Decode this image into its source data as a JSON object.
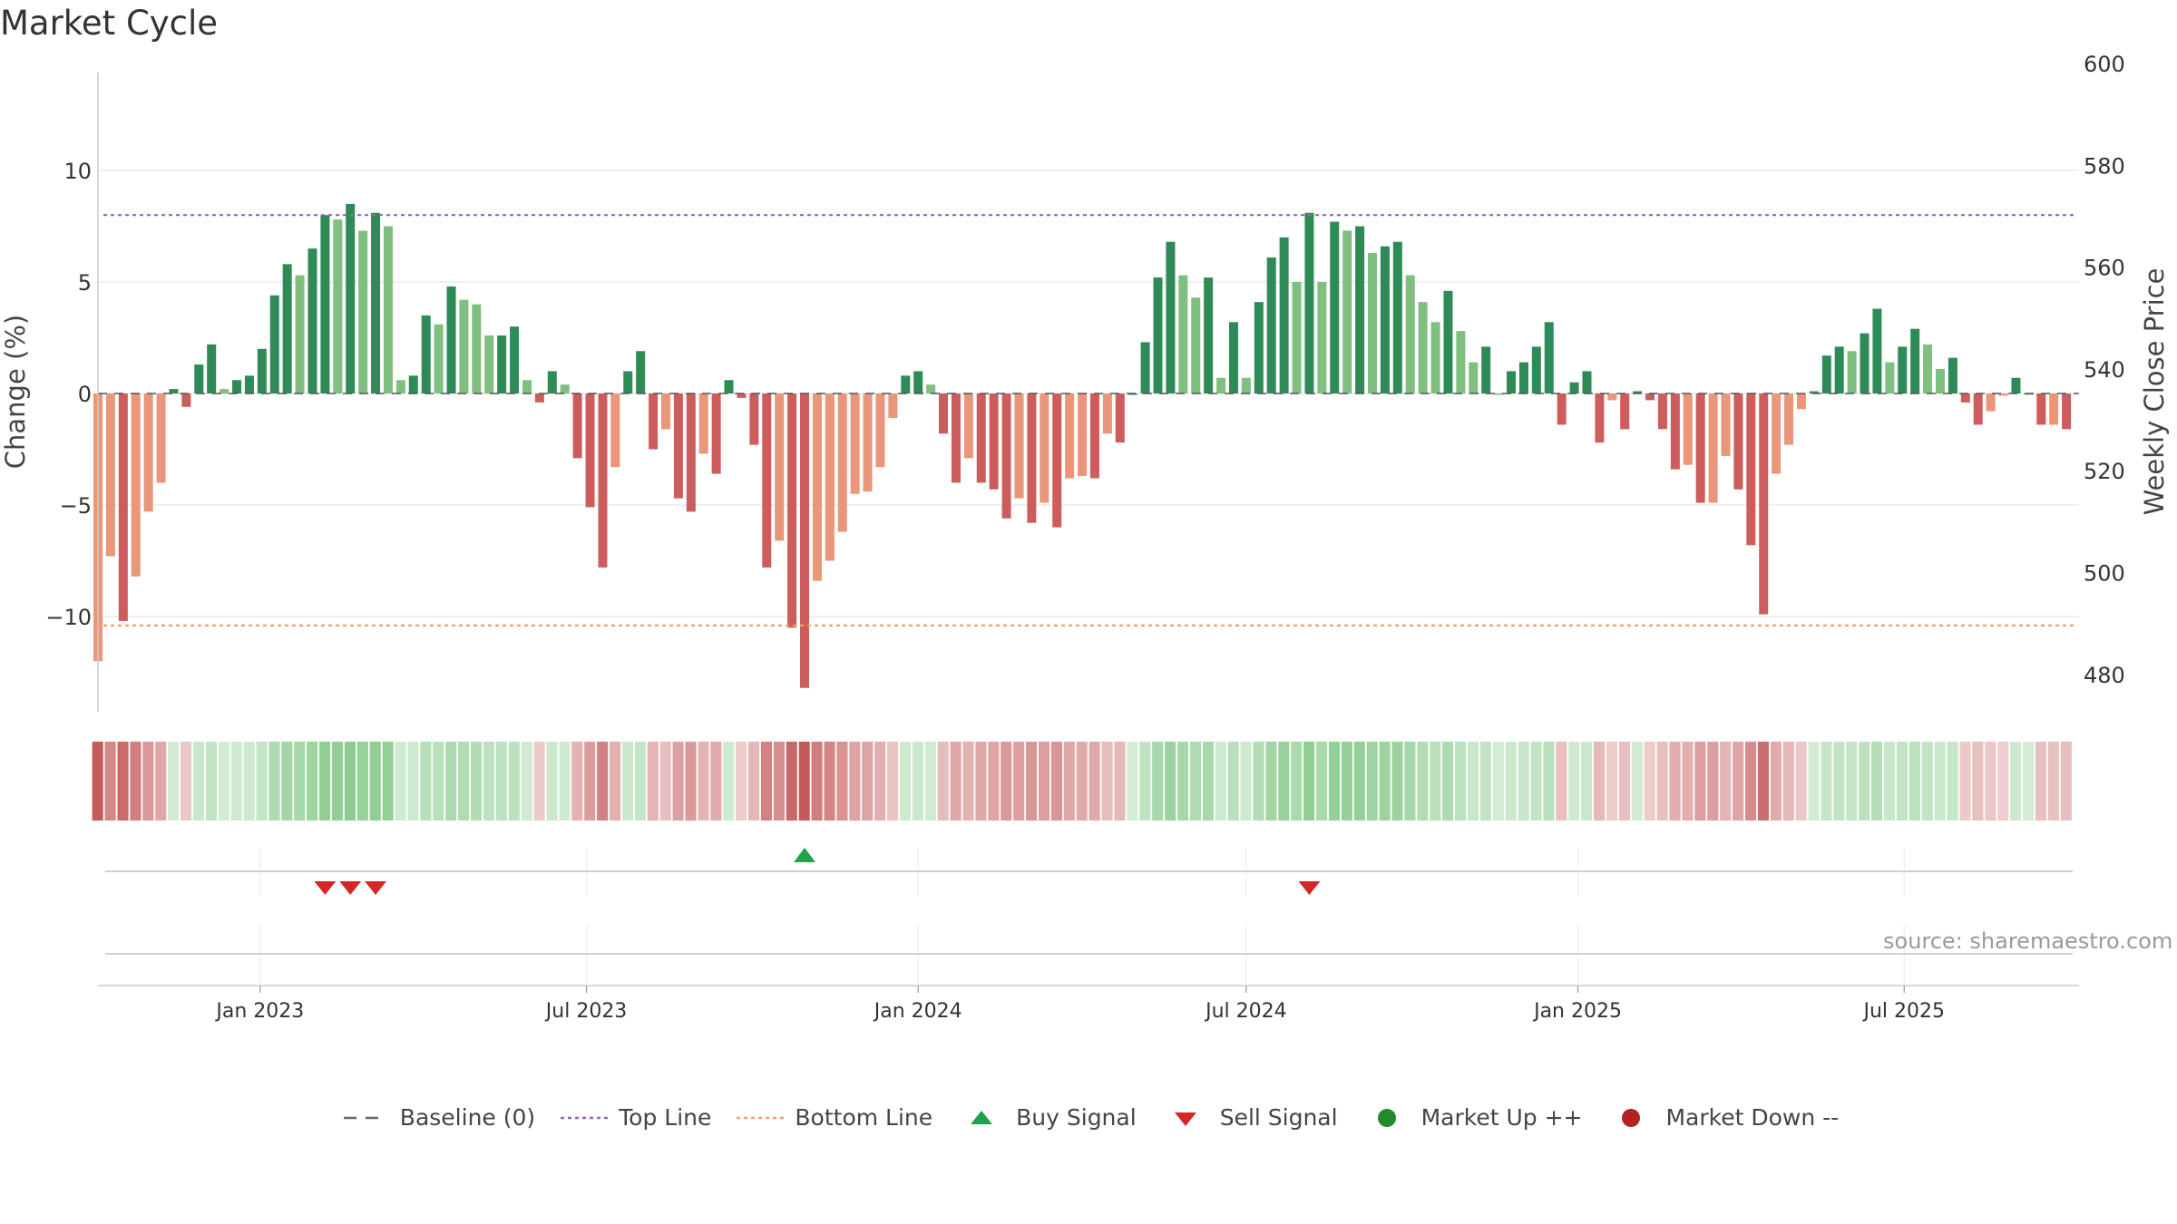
{
  "chart_data": {
    "type": "bar",
    "title": "Market Cycle",
    "ylabel": "Change (%)",
    "y2label": "Weekly Close Price",
    "ylim": [
      -14.2,
      14.5
    ],
    "y2lim": [
      470,
      600
    ],
    "yticks": [
      10,
      5,
      0,
      -5,
      -10
    ],
    "ytick_labels": [
      "10",
      "5",
      "0",
      "−5",
      "−10"
    ],
    "y2ticks": [
      600,
      580,
      560,
      540,
      520,
      500,
      480
    ],
    "x_start": "2022-10-03",
    "x_end": "2025-10-06",
    "xtick_dates": [
      "2023-01-01",
      "2023-07-01",
      "2024-01-01",
      "2024-07-01",
      "2025-01-01",
      "2025-07-01"
    ],
    "xtick_labels": [
      "Jan 2023",
      "Jul 2023",
      "Jan 2024",
      "Jul 2024",
      "Jan 2025",
      "Jul 2025"
    ],
    "top_line": 8.0,
    "bottom_line": -10.4,
    "baseline": 0,
    "weeks": [
      {
        "date": "2022-10-03",
        "value": -12.0
      },
      {
        "date": "2022-10-10",
        "value": -7.3
      },
      {
        "date": "2022-10-17",
        "value": -10.2
      },
      {
        "date": "2022-10-24",
        "value": -8.2
      },
      {
        "date": "2022-10-31",
        "value": -5.3
      },
      {
        "date": "2022-11-07",
        "value": -4.0
      },
      {
        "date": "2022-11-14",
        "value": 0.2
      },
      {
        "date": "2022-11-21",
        "value": -0.6
      },
      {
        "date": "2022-11-28",
        "value": 1.3
      },
      {
        "date": "2022-12-05",
        "value": 2.2
      },
      {
        "date": "2022-12-12",
        "value": 0.2
      },
      {
        "date": "2022-12-19",
        "value": 0.6
      },
      {
        "date": "2022-12-26",
        "value": 0.8
      },
      {
        "date": "2023-01-02",
        "value": 2.0
      },
      {
        "date": "2023-01-09",
        "value": 4.4
      },
      {
        "date": "2023-01-16",
        "value": 5.8
      },
      {
        "date": "2023-01-23",
        "value": 5.3
      },
      {
        "date": "2023-01-30",
        "value": 6.5
      },
      {
        "date": "2023-02-06",
        "value": 8.0
      },
      {
        "date": "2023-02-13",
        "value": 7.8
      },
      {
        "date": "2023-02-20",
        "value": 8.5
      },
      {
        "date": "2023-02-27",
        "value": 7.3
      },
      {
        "date": "2023-03-06",
        "value": 8.1
      },
      {
        "date": "2023-03-13",
        "value": 7.5
      },
      {
        "date": "2023-03-20",
        "value": 0.6
      },
      {
        "date": "2023-03-27",
        "value": 0.8
      },
      {
        "date": "2023-04-03",
        "value": 3.5
      },
      {
        "date": "2023-04-10",
        "value": 3.1
      },
      {
        "date": "2023-04-17",
        "value": 4.8
      },
      {
        "date": "2023-04-24",
        "value": 4.2
      },
      {
        "date": "2023-05-01",
        "value": 4.0
      },
      {
        "date": "2023-05-08",
        "value": 2.6
      },
      {
        "date": "2023-05-15",
        "value": 2.6
      },
      {
        "date": "2023-05-22",
        "value": 3.0
      },
      {
        "date": "2023-05-29",
        "value": 0.6
      },
      {
        "date": "2023-06-05",
        "value": -0.4
      },
      {
        "date": "2023-06-12",
        "value": 1.0
      },
      {
        "date": "2023-06-19",
        "value": 0.4
      },
      {
        "date": "2023-06-26",
        "value": -2.9
      },
      {
        "date": "2023-07-03",
        "value": -5.1
      },
      {
        "date": "2023-07-10",
        "value": -7.8
      },
      {
        "date": "2023-07-17",
        "value": -3.3
      },
      {
        "date": "2023-07-24",
        "value": 1.0
      },
      {
        "date": "2023-07-31",
        "value": 1.9
      },
      {
        "date": "2023-08-07",
        "value": -2.5
      },
      {
        "date": "2023-08-14",
        "value": -1.6
      },
      {
        "date": "2023-08-21",
        "value": -4.7
      },
      {
        "date": "2023-08-28",
        "value": -5.3
      },
      {
        "date": "2023-09-04",
        "value": -2.7
      },
      {
        "date": "2023-09-11",
        "value": -3.6
      },
      {
        "date": "2023-09-18",
        "value": 0.6
      },
      {
        "date": "2023-09-25",
        "value": -0.2
      },
      {
        "date": "2023-10-02",
        "value": -2.3
      },
      {
        "date": "2023-10-09",
        "value": -7.8
      },
      {
        "date": "2023-10-16",
        "value": -6.6
      },
      {
        "date": "2023-10-23",
        "value": -10.5
      },
      {
        "date": "2023-10-30",
        "value": -13.2
      },
      {
        "date": "2023-11-06",
        "value": -8.4
      },
      {
        "date": "2023-11-13",
        "value": -7.5
      },
      {
        "date": "2023-11-20",
        "value": -6.2
      },
      {
        "date": "2023-11-27",
        "value": -4.5
      },
      {
        "date": "2023-12-04",
        "value": -4.4
      },
      {
        "date": "2023-12-11",
        "value": -3.3
      },
      {
        "date": "2023-12-18",
        "value": -1.1
      },
      {
        "date": "2023-12-25",
        "value": 0.8
      },
      {
        "date": "2024-01-01",
        "value": 1.0
      },
      {
        "date": "2024-01-08",
        "value": 0.4
      },
      {
        "date": "2024-01-15",
        "value": -1.8
      },
      {
        "date": "2024-01-22",
        "value": -4.0
      },
      {
        "date": "2024-01-29",
        "value": -2.9
      },
      {
        "date": "2024-02-05",
        "value": -4.0
      },
      {
        "date": "2024-02-12",
        "value": -4.3
      },
      {
        "date": "2024-02-19",
        "value": -5.6
      },
      {
        "date": "2024-02-26",
        "value": -4.7
      },
      {
        "date": "2024-03-04",
        "value": -5.8
      },
      {
        "date": "2024-03-11",
        "value": -4.9
      },
      {
        "date": "2024-03-18",
        "value": -6.0
      },
      {
        "date": "2024-03-25",
        "value": -3.8
      },
      {
        "date": "2024-04-01",
        "value": -3.7
      },
      {
        "date": "2024-04-08",
        "value": -3.8
      },
      {
        "date": "2024-04-15",
        "value": -1.8
      },
      {
        "date": "2024-04-22",
        "value": -2.2
      },
      {
        "date": "2024-04-29",
        "value": 0.0
      },
      {
        "date": "2024-05-06",
        "value": 2.3
      },
      {
        "date": "2024-05-13",
        "value": 5.2
      },
      {
        "date": "2024-05-20",
        "value": 6.8
      },
      {
        "date": "2024-05-27",
        "value": 5.3
      },
      {
        "date": "2024-06-03",
        "value": 4.3
      },
      {
        "date": "2024-06-10",
        "value": 5.2
      },
      {
        "date": "2024-06-17",
        "value": 0.7
      },
      {
        "date": "2024-06-24",
        "value": 3.2
      },
      {
        "date": "2024-07-01",
        "value": 0.7
      },
      {
        "date": "2024-07-08",
        "value": 4.1
      },
      {
        "date": "2024-07-15",
        "value": 6.1
      },
      {
        "date": "2024-07-22",
        "value": 7.0
      },
      {
        "date": "2024-07-29",
        "value": 5.0
      },
      {
        "date": "2024-08-05",
        "value": 8.1
      },
      {
        "date": "2024-08-12",
        "value": 5.0
      },
      {
        "date": "2024-08-19",
        "value": 7.7
      },
      {
        "date": "2024-08-26",
        "value": 7.3
      },
      {
        "date": "2024-09-02",
        "value": 7.5
      },
      {
        "date": "2024-09-09",
        "value": 6.3
      },
      {
        "date": "2024-09-16",
        "value": 6.6
      },
      {
        "date": "2024-09-23",
        "value": 6.8
      },
      {
        "date": "2024-09-30",
        "value": 5.3
      },
      {
        "date": "2024-10-07",
        "value": 4.1
      },
      {
        "date": "2024-10-14",
        "value": 3.2
      },
      {
        "date": "2024-10-21",
        "value": 4.6
      },
      {
        "date": "2024-10-28",
        "value": 2.8
      },
      {
        "date": "2024-11-04",
        "value": 1.4
      },
      {
        "date": "2024-11-11",
        "value": 2.1
      },
      {
        "date": "2024-11-18",
        "value": 0.0
      },
      {
        "date": "2024-11-25",
        "value": 1.0
      },
      {
        "date": "2024-12-02",
        "value": 1.4
      },
      {
        "date": "2024-12-09",
        "value": 2.1
      },
      {
        "date": "2024-12-16",
        "value": 3.2
      },
      {
        "date": "2024-12-23",
        "value": -1.4
      },
      {
        "date": "2024-12-30",
        "value": 0.5
      },
      {
        "date": "2025-01-06",
        "value": 1.0
      },
      {
        "date": "2025-01-13",
        "value": -2.2
      },
      {
        "date": "2025-01-20",
        "value": -0.3
      },
      {
        "date": "2025-01-27",
        "value": -1.6
      },
      {
        "date": "2025-02-03",
        "value": 0.1
      },
      {
        "date": "2025-02-10",
        "value": -0.3
      },
      {
        "date": "2025-02-17",
        "value": -1.6
      },
      {
        "date": "2025-02-24",
        "value": -3.4
      },
      {
        "date": "2025-03-03",
        "value": -3.2
      },
      {
        "date": "2025-03-10",
        "value": -4.9
      },
      {
        "date": "2025-03-17",
        "value": -4.9
      },
      {
        "date": "2025-03-24",
        "value": -2.8
      },
      {
        "date": "2025-03-31",
        "value": -4.3
      },
      {
        "date": "2025-04-07",
        "value": -6.8
      },
      {
        "date": "2025-04-14",
        "value": -9.9
      },
      {
        "date": "2025-04-21",
        "value": -3.6
      },
      {
        "date": "2025-04-28",
        "value": -2.3
      },
      {
        "date": "2025-05-05",
        "value": -0.7
      },
      {
        "date": "2025-05-12",
        "value": 0.1
      },
      {
        "date": "2025-05-19",
        "value": 1.7
      },
      {
        "date": "2025-05-26",
        "value": 2.1
      },
      {
        "date": "2025-06-02",
        "value": 1.9
      },
      {
        "date": "2025-06-09",
        "value": 2.7
      },
      {
        "date": "2025-06-16",
        "value": 3.8
      },
      {
        "date": "2025-06-23",
        "value": 1.4
      },
      {
        "date": "2025-06-30",
        "value": 2.1
      },
      {
        "date": "2025-07-07",
        "value": 2.9
      },
      {
        "date": "2025-07-14",
        "value": 2.2
      },
      {
        "date": "2025-07-21",
        "value": 1.1
      },
      {
        "date": "2025-07-28",
        "value": 1.6
      },
      {
        "date": "2025-08-04",
        "value": -0.4
      },
      {
        "date": "2025-08-11",
        "value": -1.4
      },
      {
        "date": "2025-08-18",
        "value": -0.8
      },
      {
        "date": "2025-08-25",
        "value": -0.1
      },
      {
        "date": "2025-09-01",
        "value": 0.7
      },
      {
        "date": "2025-09-08",
        "value": 0.0
      },
      {
        "date": "2025-09-15",
        "value": -1.4
      },
      {
        "date": "2025-09-22",
        "value": -1.4
      },
      {
        "date": "2025-09-29",
        "value": -1.6
      }
    ],
    "buy_signals": [
      "2023-10-30"
    ],
    "sell_signals": [
      "2023-02-06",
      "2023-02-20",
      "2023-03-06",
      "2024-08-05"
    ],
    "source": "source: sharemaestro.com",
    "legend": [
      {
        "label": "Baseline (0)",
        "symbol": "dash",
        "color": "#666666"
      },
      {
        "label": "Top Line",
        "symbol": "dotted",
        "color": "#9467bd"
      },
      {
        "label": "Bottom Line",
        "symbol": "dotted",
        "color": "#f0a070"
      },
      {
        "label": "Buy Signal",
        "symbol": "triangle-up",
        "color": "#22a04b"
      },
      {
        "label": "Sell Signal",
        "symbol": "triangle-down",
        "color": "#d62728"
      },
      {
        "label": "Market Up ++",
        "symbol": "circle",
        "color": "#1f8a2e"
      },
      {
        "label": "Market Down --",
        "symbol": "circle",
        "color": "#b22222"
      }
    ],
    "legend_position": "bottom-center",
    "colors": {
      "up_strong": "#2e8b57",
      "up_weak": "#7fbf7f",
      "down_strong": "#cd5c5c",
      "down_weak": "#e9967a",
      "grid": "#e6e6e6",
      "axis": "#cccccc"
    }
  }
}
